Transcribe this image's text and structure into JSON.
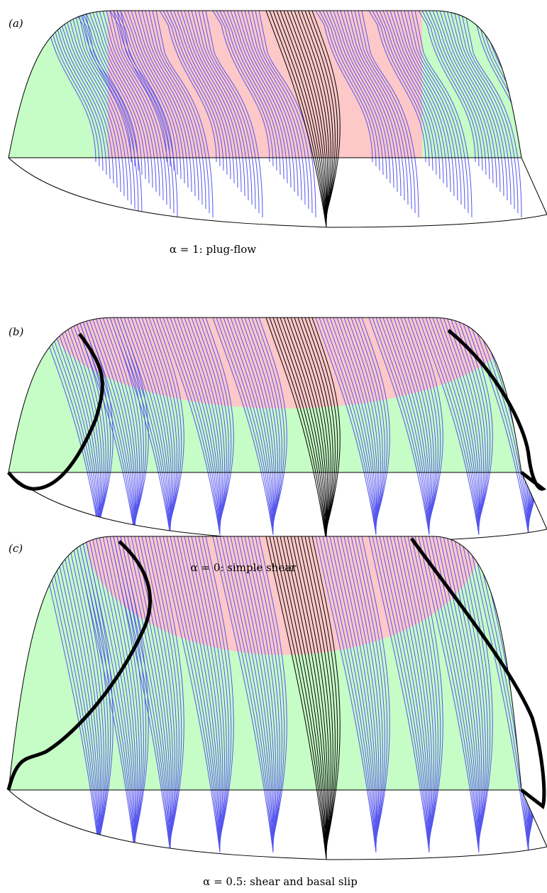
{
  "panels": [
    {
      "label": "(a)",
      "caption": "α = 1: plug-flow"
    },
    {
      "label": "(b)",
      "caption": "α = 0: simple shear"
    },
    {
      "label": "(c)",
      "caption": "α = 0.5: shear and basal slip"
    }
  ]
}
